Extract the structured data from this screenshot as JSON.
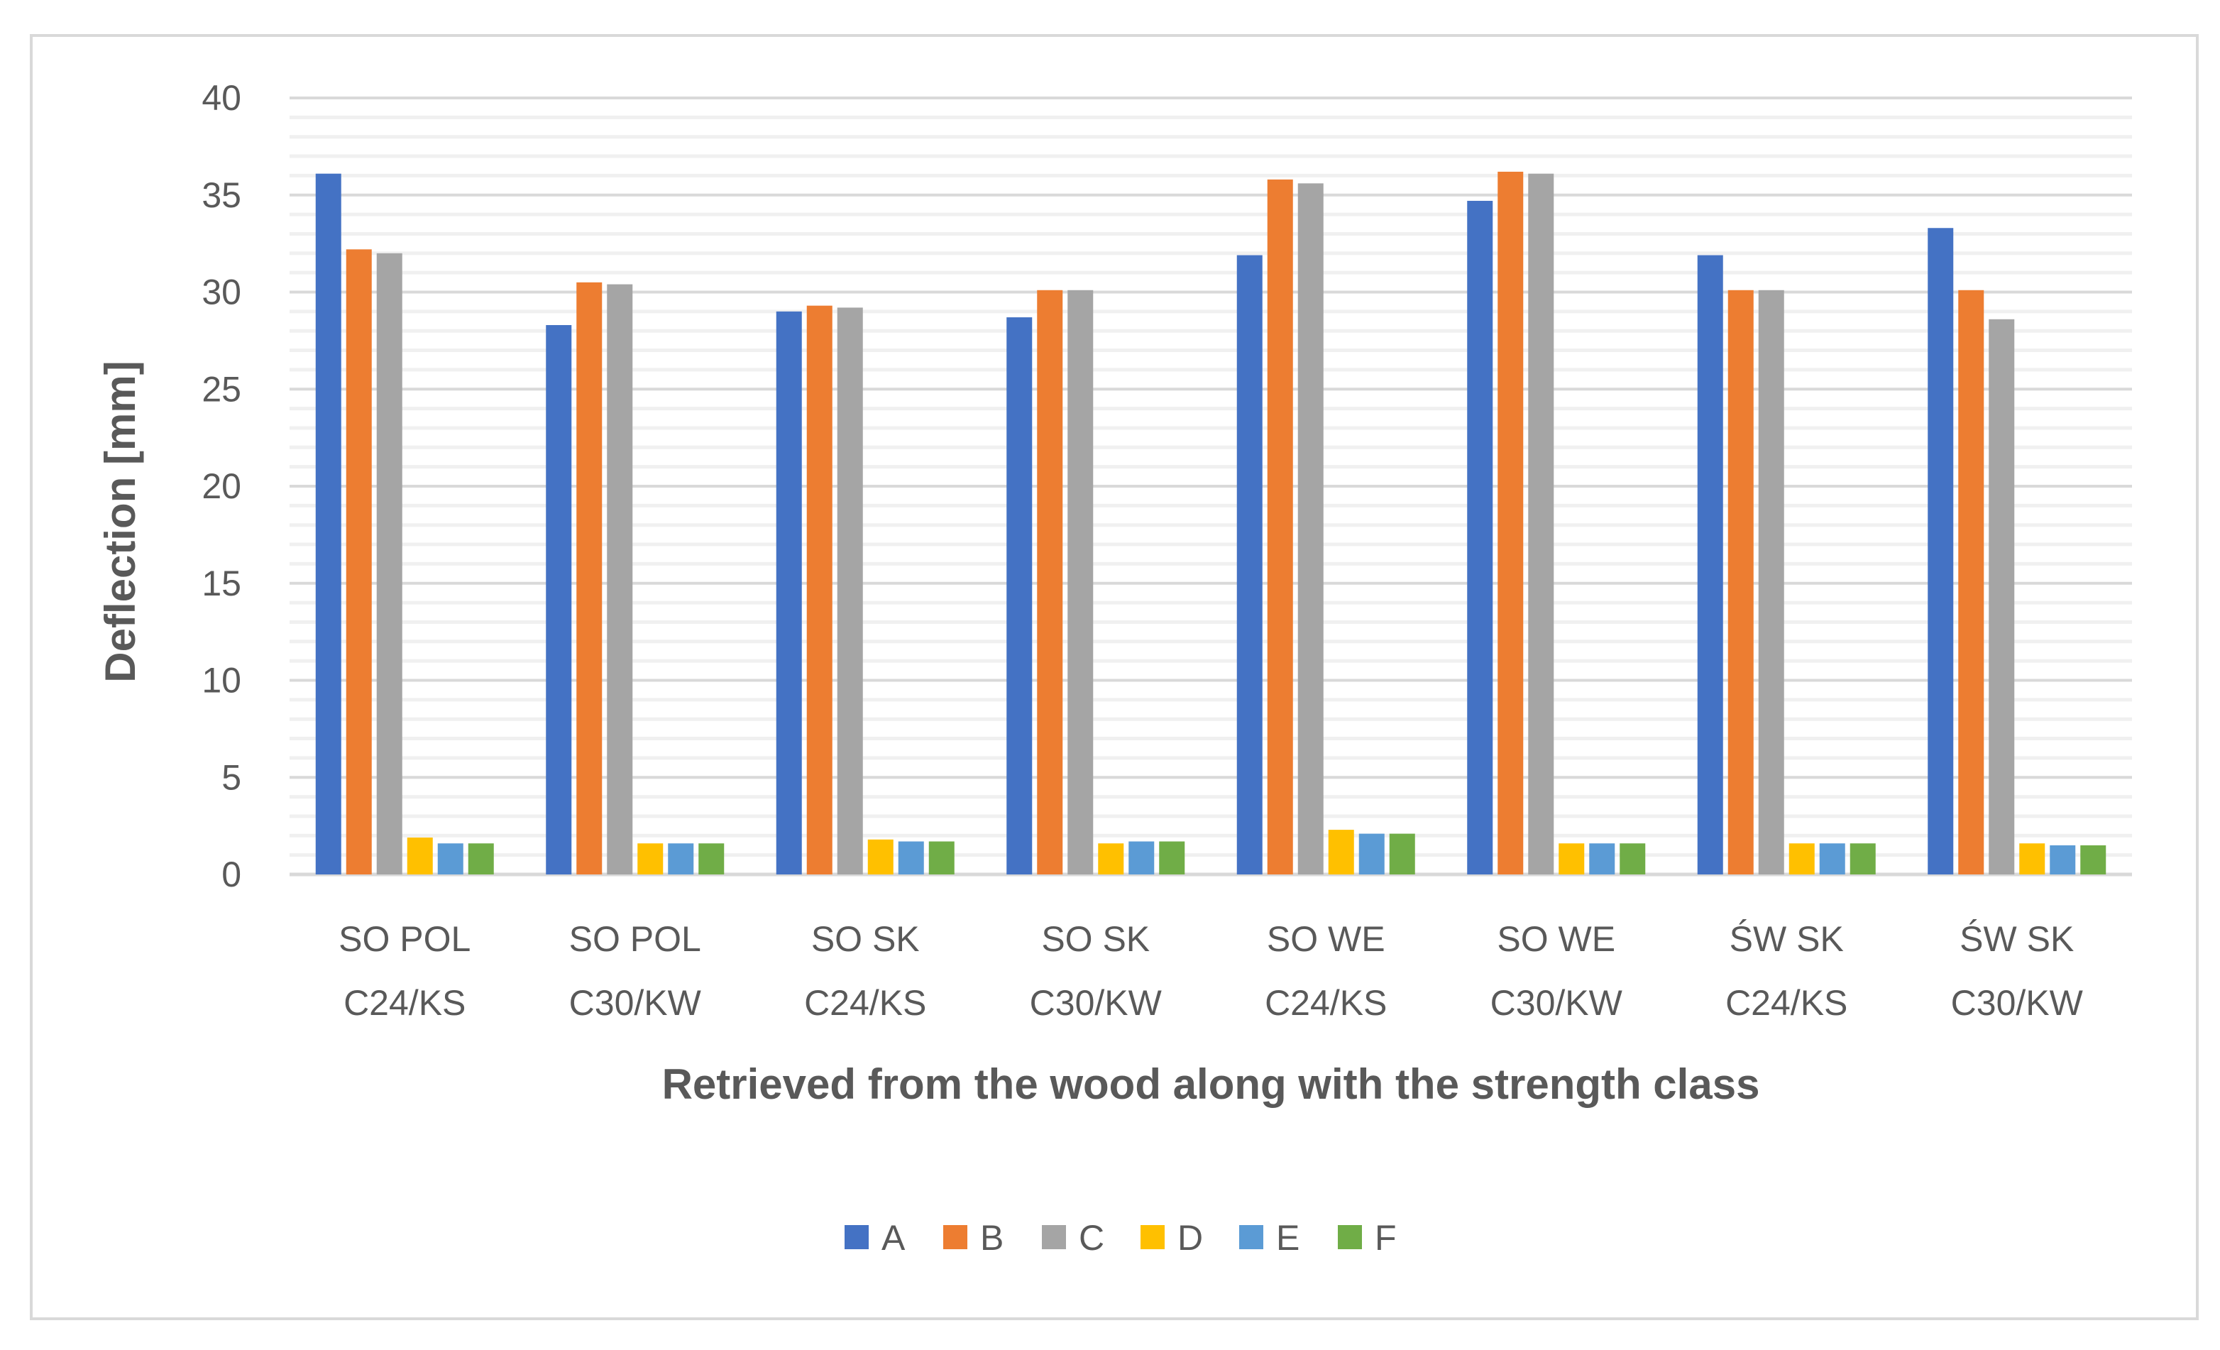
{
  "chart_data": {
    "type": "bar",
    "title": "",
    "xlabel": "Retrieved from the wood along with the strength class",
    "ylabel": "Deflection [mm]",
    "ylim": [
      0,
      40
    ],
    "yticks": [
      0,
      5,
      10,
      15,
      20,
      25,
      30,
      35,
      40
    ],
    "grid": {
      "major": true,
      "minor": true,
      "minor_step": 1
    },
    "legend_position": "bottom",
    "categories": [
      [
        "SO POL",
        "C24/KS"
      ],
      [
        "SO POL",
        "C30/KW"
      ],
      [
        "SO SK",
        "C24/KS"
      ],
      [
        "SO SK",
        "C30/KW"
      ],
      [
        "SO WE",
        "C24/KS"
      ],
      [
        "SO WE",
        "C30/KW"
      ],
      [
        "ŚW SK",
        "C24/KS"
      ],
      [
        "ŚW SK",
        "C30/KW"
      ]
    ],
    "series": [
      {
        "name": "A",
        "color": "#4472C4",
        "values": [
          36.1,
          28.3,
          29.0,
          28.7,
          31.9,
          34.7,
          31.9,
          33.3
        ]
      },
      {
        "name": "B",
        "color": "#ED7D31",
        "values": [
          32.2,
          30.5,
          29.3,
          30.1,
          35.8,
          36.2,
          30.1,
          30.1
        ]
      },
      {
        "name": "C",
        "color": "#A5A5A5",
        "values": [
          32.0,
          30.4,
          29.2,
          30.1,
          35.6,
          36.1,
          30.1,
          28.6
        ]
      },
      {
        "name": "D",
        "color": "#FFC000",
        "values": [
          1.9,
          1.6,
          1.8,
          1.6,
          2.3,
          1.6,
          1.6,
          1.6
        ]
      },
      {
        "name": "E",
        "color": "#5B9BD5",
        "values": [
          1.6,
          1.6,
          1.7,
          1.7,
          2.1,
          1.6,
          1.6,
          1.5
        ]
      },
      {
        "name": "F",
        "color": "#70AD47",
        "values": [
          1.6,
          1.6,
          1.7,
          1.7,
          2.1,
          1.6,
          1.6,
          1.5
        ]
      }
    ]
  }
}
